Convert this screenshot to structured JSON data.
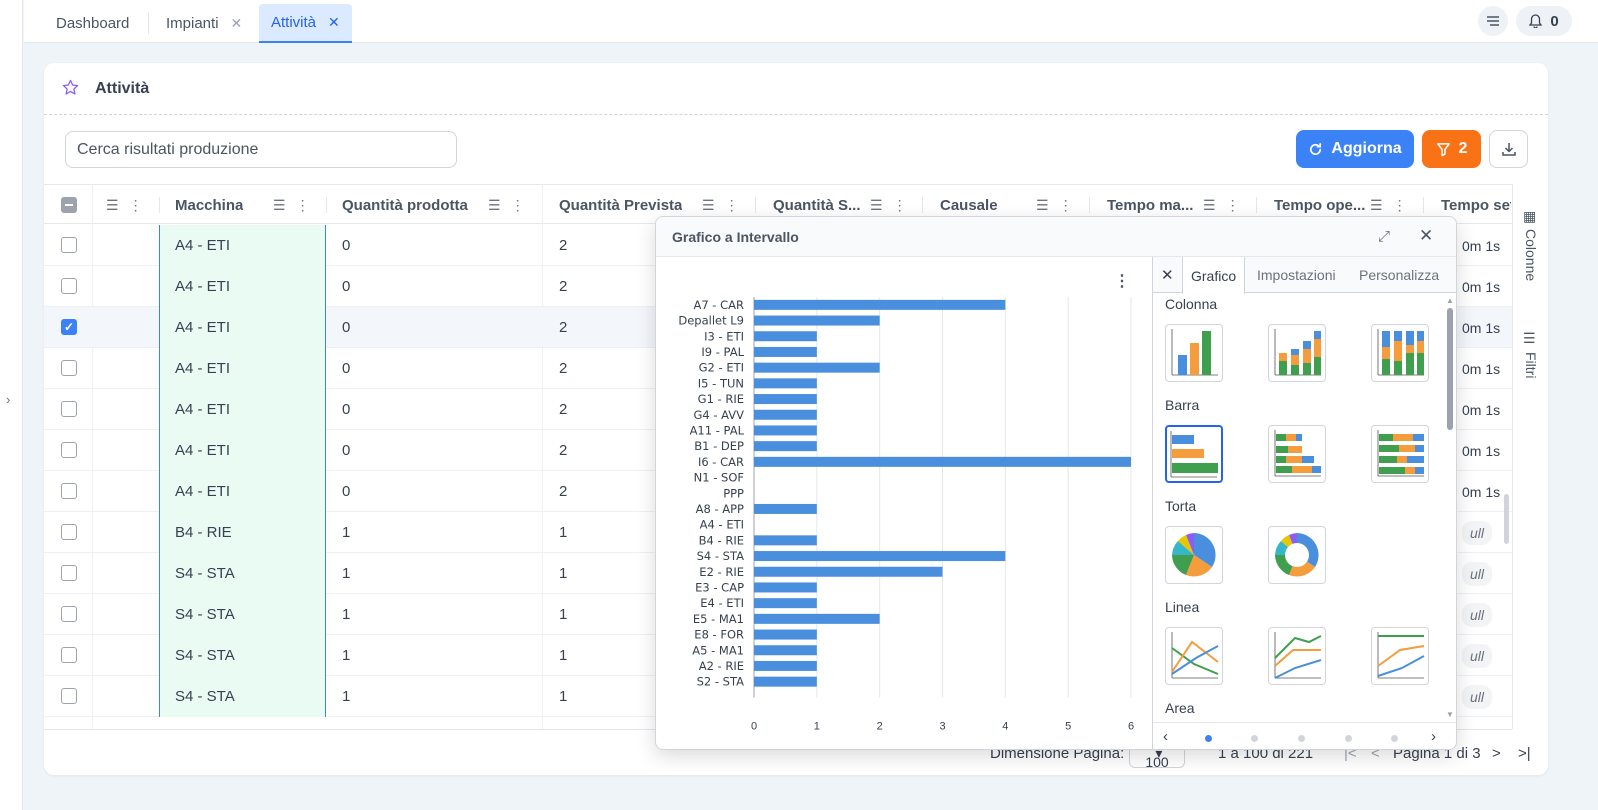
{
  "tabs": [
    {
      "label": "Dashboard",
      "closable": false,
      "active": false
    },
    {
      "label": "Impianti",
      "closable": true,
      "active": false
    },
    {
      "label": "Attività",
      "closable": true,
      "active": true
    }
  ],
  "notifications": {
    "count": "0"
  },
  "page": {
    "title": "Attività"
  },
  "search": {
    "placeholder": "Cerca risultati produzione"
  },
  "toolbar": {
    "refresh_label": "Aggiorna",
    "filter_count": "2"
  },
  "grid": {
    "columns": [
      "Macchina",
      "Quantità prodotta",
      "Quantità Prevista",
      "Quantità S...",
      "Causale",
      "Tempo ma...",
      "Tempo ope...",
      "Tempo set"
    ],
    "rows": [
      {
        "selected": false,
        "macchina": "A4 - ETI",
        "prodotta": "0",
        "prevista": "2",
        "tail": "0m 1s"
      },
      {
        "selected": false,
        "macchina": "A4 - ETI",
        "prodotta": "0",
        "prevista": "2",
        "tail": "0m 1s"
      },
      {
        "selected": true,
        "macchina": "A4 - ETI",
        "prodotta": "0",
        "prevista": "2",
        "tail": "0m 1s"
      },
      {
        "selected": false,
        "macchina": "A4 - ETI",
        "prodotta": "0",
        "prevista": "2",
        "tail": "0m 1s"
      },
      {
        "selected": false,
        "macchina": "A4 - ETI",
        "prodotta": "0",
        "prevista": "2",
        "tail": "0m 1s"
      },
      {
        "selected": false,
        "macchina": "A4 - ETI",
        "prodotta": "0",
        "prevista": "2",
        "tail": "0m 1s"
      },
      {
        "selected": false,
        "macchina": "A4 - ETI",
        "prodotta": "0",
        "prevista": "2",
        "tail": "0m 1s"
      },
      {
        "selected": false,
        "macchina": "B4 - RIE",
        "prodotta": "1",
        "prevista": "1",
        "tail": "ull"
      },
      {
        "selected": false,
        "macchina": "S4 - STA",
        "prodotta": "1",
        "prevista": "1",
        "tail": "ull"
      },
      {
        "selected": false,
        "macchina": "S4 - STA",
        "prodotta": "1",
        "prevista": "1",
        "tail": "ull"
      },
      {
        "selected": false,
        "macchina": "S4 - STA",
        "prodotta": "1",
        "prevista": "1",
        "tail": "ull"
      },
      {
        "selected": false,
        "macchina": "S4 - STA",
        "prodotta": "1",
        "prevista": "1",
        "tail": "ull"
      }
    ]
  },
  "side_panel": {
    "columns_label": "Colonne",
    "filters_label": "Filtri"
  },
  "footer": {
    "page_size_label": "Dimensione Pagina:",
    "page_size_value": "100",
    "range_text": "1 a 100 di 221",
    "page_text": "Pagina 1 di 3"
  },
  "popup": {
    "title": "Grafico a Intervallo",
    "tool_tabs": [
      "Grafico",
      "Impostazioni",
      "Personalizza"
    ],
    "groups": [
      "Colonna",
      "Barra",
      "Torta",
      "Linea",
      "Area"
    ],
    "accent": "#3b82f6"
  },
  "chart_data": {
    "type": "bar",
    "orientation": "horizontal",
    "categories": [
      "A7 - CAR",
      "Depallet L9",
      "I3 - ETI",
      "I9 - PAL",
      "G2 - ETI",
      "I5 - TUN",
      "G1 - RIE",
      "G4 - AVV",
      "A11 - PAL",
      "B1 - DEP",
      "I6 - CAR",
      "N1 - SOF",
      "PPP",
      "A8 - APP",
      "A4 - ETI",
      "B4 - RIE",
      "S4 - STA",
      "E2 - RIE",
      "E3 - CAP",
      "E4 - ETI",
      "E5 - MA1",
      "E8 - FOR",
      "A5 - MA1",
      "A2 - RIE",
      "S2 - STA"
    ],
    "values": [
      4,
      2,
      1,
      1,
      2,
      1,
      1,
      1,
      1,
      1,
      6,
      0,
      0,
      1,
      0,
      1,
      4,
      3,
      1,
      1,
      2,
      1,
      1,
      1,
      1
    ],
    "xlim": [
      0,
      6
    ],
    "xticks": [
      "0",
      "1",
      "2",
      "3",
      "4",
      "5",
      "6"
    ],
    "grid": true,
    "color": "#4a8fdd"
  }
}
